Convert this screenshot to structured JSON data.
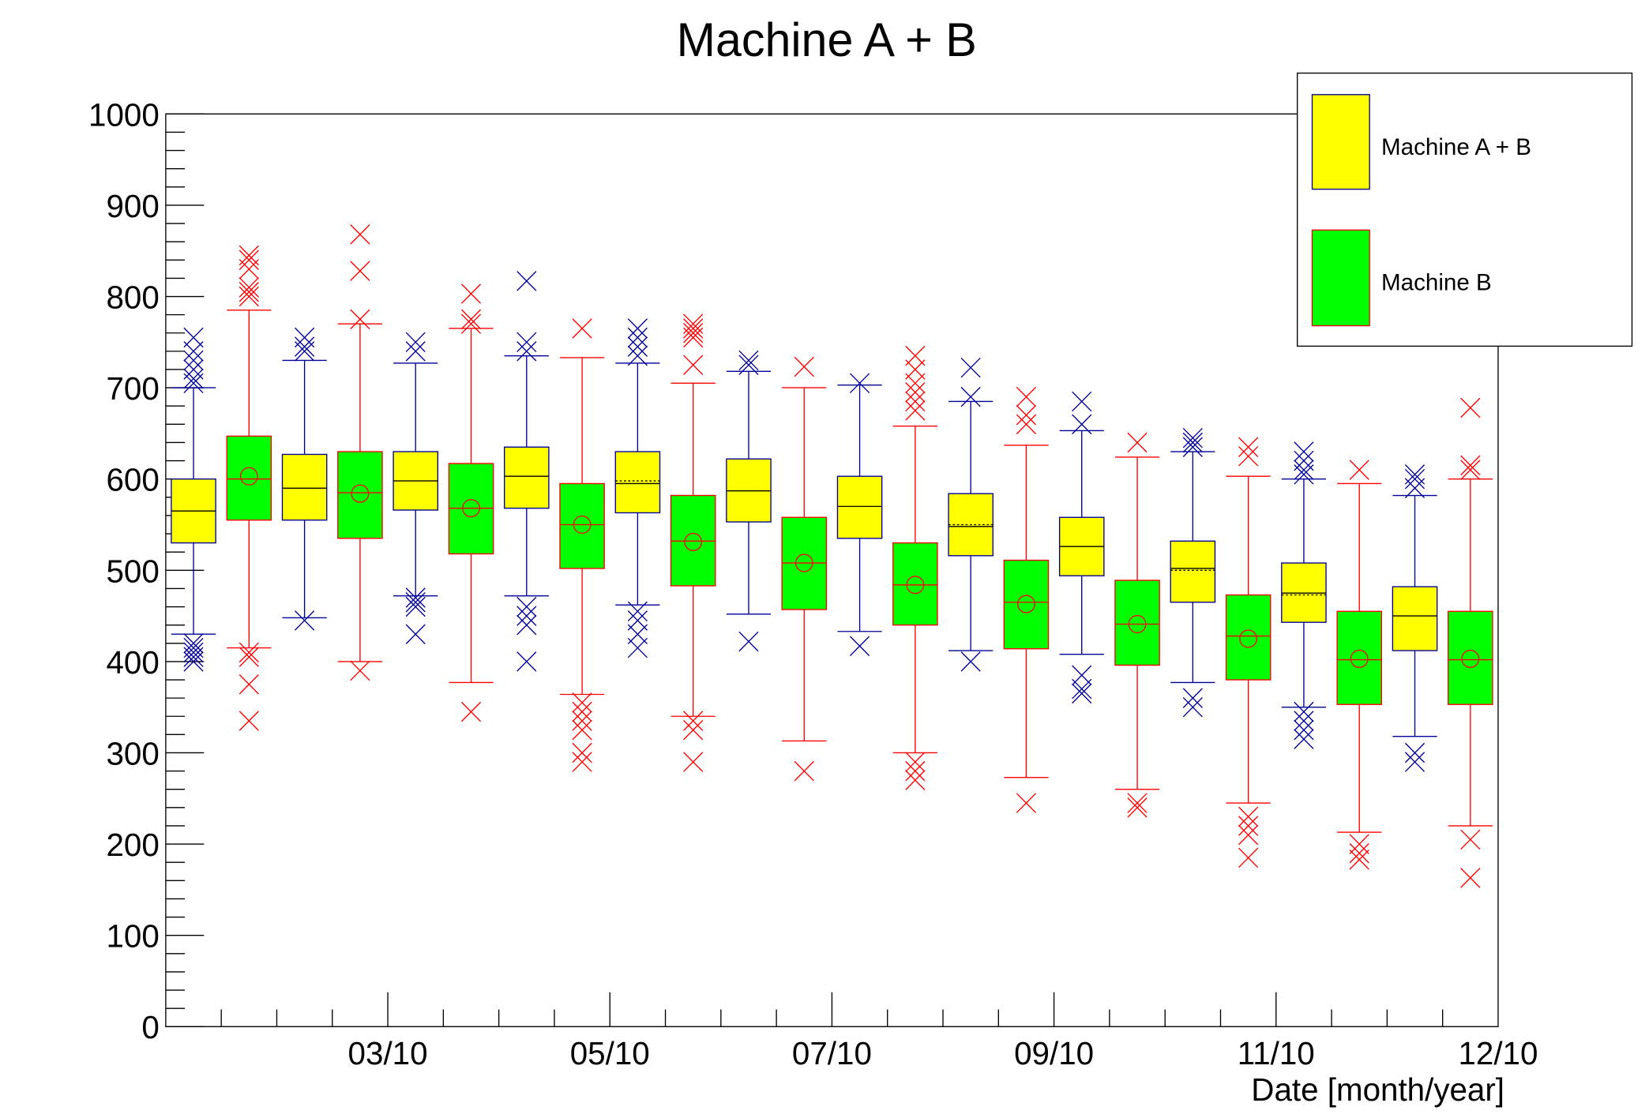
{
  "chart_data": {
    "type": "box",
    "title": "Machine A + B",
    "xlabel": "Date [month/year]",
    "ylabel": "",
    "ylim": [
      0,
      1000
    ],
    "y_ticks": [
      "0",
      "100",
      "200",
      "300",
      "400",
      "500",
      "600",
      "700",
      "800",
      "900",
      "1000"
    ],
    "x_ticks": [
      "03/10",
      "05/10",
      "07/10",
      "09/10",
      "11/10",
      "12/10"
    ],
    "grid": false,
    "legend_position": "top-right",
    "colors": {
      "A+B_fill": "#ffff00",
      "A+B_line": "#000099",
      "B_fill": "#00ff00",
      "B_line": "#ff0000"
    },
    "series": [
      {
        "name": "Machine A + B",
        "months": [
          "01/10",
          "02/10",
          "03/10",
          "04/10",
          "05/10",
          "06/10",
          "07/10",
          "08/10",
          "09/10",
          "10/10",
          "11/10",
          "12/10"
        ],
        "boxes": [
          {
            "q1": 530,
            "median": 565,
            "q3": 600,
            "lo": 430,
            "hi": 700,
            "out": [
              705,
              710,
              720,
              730,
              740,
              755,
              400,
              405,
              410,
              415,
              420
            ]
          },
          {
            "q1": 555,
            "median": 590,
            "q3": 627,
            "lo": 448,
            "hi": 730,
            "out": [
              740,
              745,
              755,
              445
            ]
          },
          {
            "q1": 566,
            "median": 598,
            "q3": 630,
            "lo": 472,
            "hi": 727,
            "out": [
              740,
              750,
              470,
              465,
              460,
              430
            ]
          },
          {
            "q1": 568,
            "median": 603,
            "q3": 635,
            "lo": 472,
            "hi": 735,
            "out": [
              740,
              750,
              817,
              460,
              450,
              440,
              400
            ]
          },
          {
            "q1": 563,
            "median": 595,
            "q3": 630,
            "mean": 598,
            "lo": 462,
            "hi": 727,
            "out": [
              735,
              745,
              755,
              765,
              455,
              445,
              430,
              415
            ]
          },
          {
            "q1": 553,
            "median": 587,
            "q3": 622,
            "lo": 452,
            "hi": 718,
            "out": [
              725,
              730,
              422
            ]
          },
          {
            "q1": 535,
            "median": 570,
            "q3": 603,
            "lo": 433,
            "hi": 703,
            "out": [
              705,
              417
            ]
          },
          {
            "q1": 516,
            "median": 548,
            "q3": 584,
            "mean": 550,
            "lo": 412,
            "hi": 685,
            "out": [
              690,
              722,
              400
            ]
          },
          {
            "q1": 494,
            "median": 526,
            "q3": 558,
            "lo": 408,
            "hi": 653,
            "out": [
              660,
              685,
              385,
              370,
              365
            ]
          },
          {
            "q1": 465,
            "median": 502,
            "q3": 532,
            "mean": 500,
            "lo": 377,
            "hi": 630,
            "out": [
              635,
              640,
              645,
              360,
              350
            ]
          },
          {
            "q1": 443,
            "median": 475,
            "q3": 508,
            "mean": 473,
            "lo": 350,
            "hi": 600,
            "out": [
              605,
              610,
              620,
              630,
              345,
              335,
              325,
              315
            ]
          },
          {
            "q1": 412,
            "median": 450,
            "q3": 482,
            "lo": 318,
            "hi": 582,
            "out": [
              590,
              600,
              605,
              300,
              290
            ]
          }
        ]
      },
      {
        "name": "Machine B",
        "months": [
          "01/10",
          "02/10",
          "03/10",
          "04/10",
          "05/10",
          "06/10",
          "07/10",
          "08/10",
          "09/10",
          "10/10",
          "11/10",
          "12/10"
        ],
        "boxes": [
          {
            "q1": 555,
            "median": 600,
            "q3": 647,
            "mean": 603,
            "lo": 415,
            "hi": 785,
            "out": [
              800,
              805,
              810,
              830,
              840,
              845,
              410,
              405,
              375,
              335
            ]
          },
          {
            "q1": 535,
            "median": 585,
            "q3": 630,
            "mean": 584,
            "lo": 400,
            "hi": 770,
            "out": [
              775,
              828,
              868,
              390
            ]
          },
          {
            "q1": 518,
            "median": 568,
            "q3": 617,
            "mean": 568,
            "lo": 377,
            "hi": 765,
            "out": [
              770,
              775,
              803,
              345
            ]
          },
          {
            "q1": 502,
            "median": 550,
            "q3": 595,
            "mean": 550,
            "lo": 364,
            "hi": 733,
            "out": [
              765,
              355,
              345,
              335,
              325,
              300,
              290
            ]
          },
          {
            "q1": 483,
            "median": 532,
            "q3": 582,
            "mean": 531,
            "lo": 340,
            "hi": 705,
            "out": [
              725,
              755,
              760,
              765,
              770,
              335,
              325,
              290
            ]
          },
          {
            "q1": 457,
            "median": 508,
            "q3": 558,
            "mean": 508,
            "lo": 313,
            "hi": 700,
            "out": [
              723,
              280
            ]
          },
          {
            "q1": 440,
            "median": 484,
            "q3": 530,
            "mean": 484,
            "lo": 300,
            "hi": 658,
            "out": [
              675,
              685,
              695,
              705,
              720,
              735,
              290,
              280,
              270
            ]
          },
          {
            "q1": 414,
            "median": 465,
            "q3": 511,
            "mean": 463,
            "lo": 273,
            "hi": 637,
            "out": [
              660,
              670,
              690,
              245
            ]
          },
          {
            "q1": 396,
            "median": 441,
            "q3": 489,
            "mean": 441,
            "lo": 260,
            "hi": 624,
            "out": [
              640,
              245,
              240
            ]
          },
          {
            "q1": 380,
            "median": 428,
            "q3": 473,
            "mean": 425,
            "lo": 245,
            "hi": 603,
            "out": [
              625,
              635,
              230,
              220,
              210,
              185
            ]
          },
          {
            "q1": 353,
            "median": 402,
            "q3": 455,
            "mean": 403,
            "lo": 213,
            "hi": 595,
            "out": [
              610,
              200,
              190,
              183
            ]
          },
          {
            "q1": 353,
            "median": 402,
            "q3": 455,
            "mean": 403,
            "lo": 220,
            "hi": 600,
            "out": [
              610,
              615,
              678,
              205,
              163
            ]
          }
        ]
      }
    ]
  }
}
